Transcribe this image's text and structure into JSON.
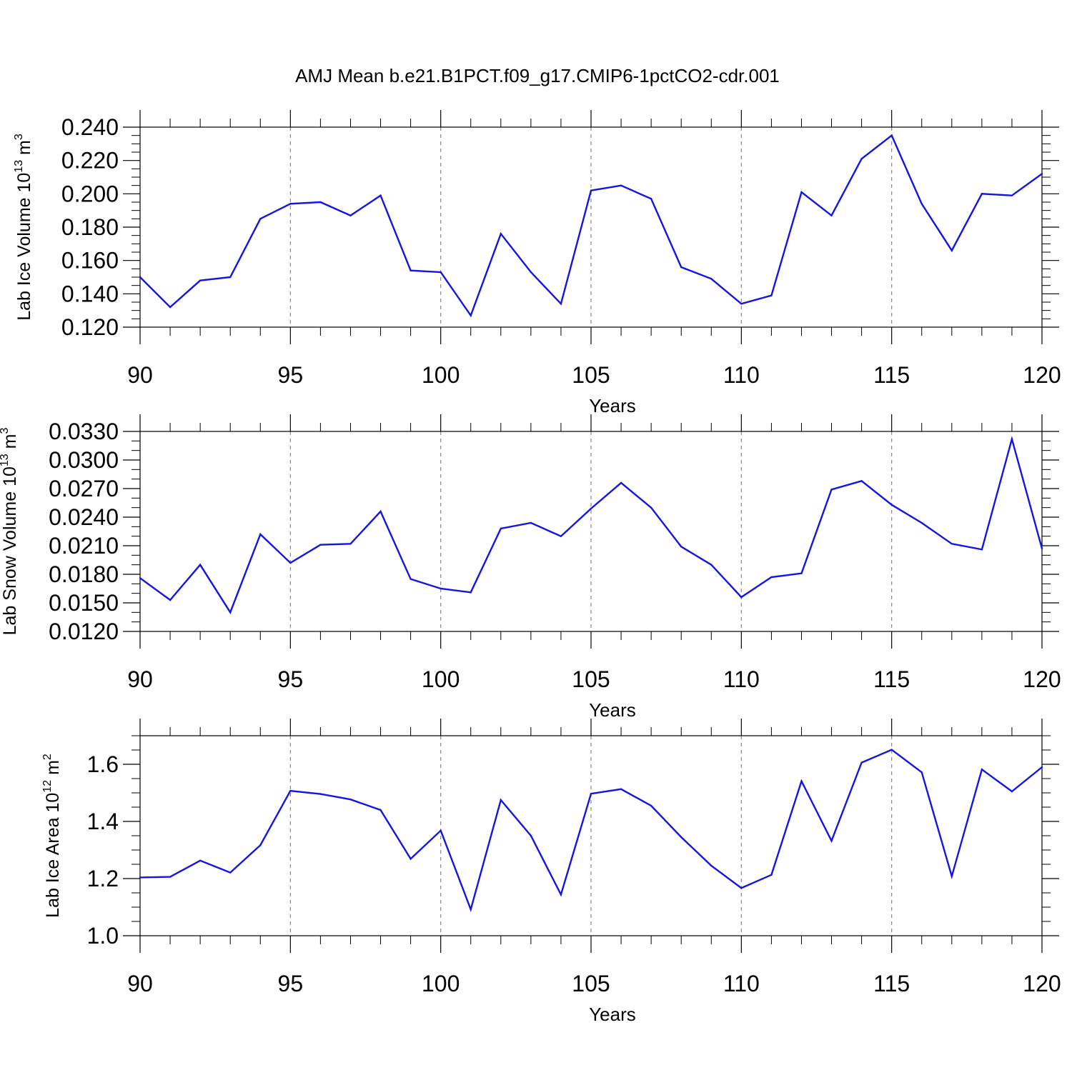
{
  "chart_data": {
    "title": "AMJ Mean b.e21.B1PCT.f09_g17.CMIP6-1pctCO2-cdr.001",
    "type": "line",
    "line_color": "#1414e6",
    "grid": "vertical dashed at major x ticks",
    "panels": [
      {
        "type": "line",
        "ylabel": "Lab Ice Volume 10",
        "ylabel_exp": "13",
        "ylabel_unit": " m",
        "ylabel_unit_exp": "3",
        "xlabel": "Years",
        "xlim": [
          90,
          120
        ],
        "ylim": [
          0.12,
          0.24
        ],
        "yticks": [
          0.12,
          0.14,
          0.16,
          0.18,
          0.2,
          0.22,
          0.24
        ],
        "ytick_labels": [
          "0.120",
          "0.140",
          "0.160",
          "0.180",
          "0.200",
          "0.220",
          "0.240"
        ],
        "y_minor_step": 0.005,
        "xticks": [
          90,
          95,
          100,
          105,
          110,
          115,
          120
        ],
        "xtick_labels": [
          "90",
          "95",
          "100",
          "105",
          "110",
          "115",
          "120"
        ],
        "x": [
          90,
          91,
          92,
          93,
          94,
          95,
          96,
          97,
          98,
          99,
          100,
          101,
          102,
          103,
          104,
          105,
          106,
          107,
          108,
          109,
          110,
          111,
          112,
          113,
          114,
          115,
          116,
          117,
          118,
          119,
          120
        ],
        "values": [
          0.15,
          0.132,
          0.148,
          0.15,
          0.185,
          0.194,
          0.195,
          0.187,
          0.199,
          0.154,
          0.153,
          0.127,
          0.176,
          0.153,
          0.134,
          0.202,
          0.205,
          0.197,
          0.156,
          0.149,
          0.134,
          0.139,
          0.201,
          0.187,
          0.221,
          0.235,
          0.194,
          0.166,
          0.2,
          0.199,
          0.212
        ]
      },
      {
        "type": "line",
        "ylabel": "Lab Snow Volume 10",
        "ylabel_exp": "13",
        "ylabel_unit": " m",
        "ylabel_unit_exp": "3",
        "xlabel": "Years",
        "xlim": [
          90,
          120
        ],
        "ylim": [
          0.012,
          0.033
        ],
        "yticks": [
          0.012,
          0.015,
          0.018,
          0.021,
          0.024,
          0.027,
          0.03,
          0.033
        ],
        "ytick_labels": [
          "0.0120",
          "0.0150",
          "0.0180",
          "0.0210",
          "0.0240",
          "0.0270",
          "0.0300",
          "0.0330"
        ],
        "y_minor_step": 0.001,
        "xticks": [
          90,
          95,
          100,
          105,
          110,
          115,
          120
        ],
        "xtick_labels": [
          "90",
          "95",
          "100",
          "105",
          "110",
          "115",
          "120"
        ],
        "x": [
          90,
          91,
          92,
          93,
          94,
          95,
          96,
          97,
          98,
          99,
          100,
          101,
          102,
          103,
          104,
          105,
          106,
          107,
          108,
          109,
          110,
          111,
          112,
          113,
          114,
          115,
          116,
          117,
          118,
          119,
          120
        ],
        "values": [
          0.0176,
          0.0153,
          0.019,
          0.014,
          0.0222,
          0.0192,
          0.0211,
          0.0212,
          0.0246,
          0.0175,
          0.0165,
          0.0161,
          0.0228,
          0.0234,
          0.022,
          0.0249,
          0.0276,
          0.025,
          0.0209,
          0.019,
          0.0156,
          0.0177,
          0.0181,
          0.0269,
          0.0278,
          0.0253,
          0.0234,
          0.0212,
          0.0206,
          0.0322,
          0.0207
        ]
      },
      {
        "type": "line",
        "ylabel": "Lab Ice Area 10",
        "ylabel_exp": "12",
        "ylabel_unit": " m",
        "ylabel_unit_exp": "2",
        "xlabel": "Years",
        "xlim": [
          90,
          120
        ],
        "ylim": [
          1.0,
          1.7
        ],
        "yticks": [
          1.0,
          1.2,
          1.4,
          1.6
        ],
        "ytick_labels": [
          "1.0",
          "1.2",
          "1.4",
          "1.6"
        ],
        "y_minor_step": 0.05,
        "xticks": [
          90,
          95,
          100,
          105,
          110,
          115,
          120
        ],
        "xtick_labels": [
          "90",
          "95",
          "100",
          "105",
          "110",
          "115",
          "120"
        ],
        "x": [
          90,
          91,
          92,
          93,
          94,
          95,
          96,
          97,
          98,
          99,
          100,
          101,
          102,
          103,
          104,
          105,
          106,
          107,
          108,
          109,
          110,
          111,
          112,
          113,
          114,
          115,
          116,
          117,
          118,
          119,
          120
        ],
        "values": [
          1.204,
          1.206,
          1.263,
          1.221,
          1.317,
          1.507,
          1.496,
          1.477,
          1.44,
          1.269,
          1.368,
          1.092,
          1.475,
          1.35,
          1.144,
          1.497,
          1.513,
          1.455,
          1.345,
          1.245,
          1.167,
          1.213,
          1.541,
          1.332,
          1.606,
          1.651,
          1.572,
          1.208,
          1.582,
          1.505,
          1.59
        ]
      }
    ]
  }
}
